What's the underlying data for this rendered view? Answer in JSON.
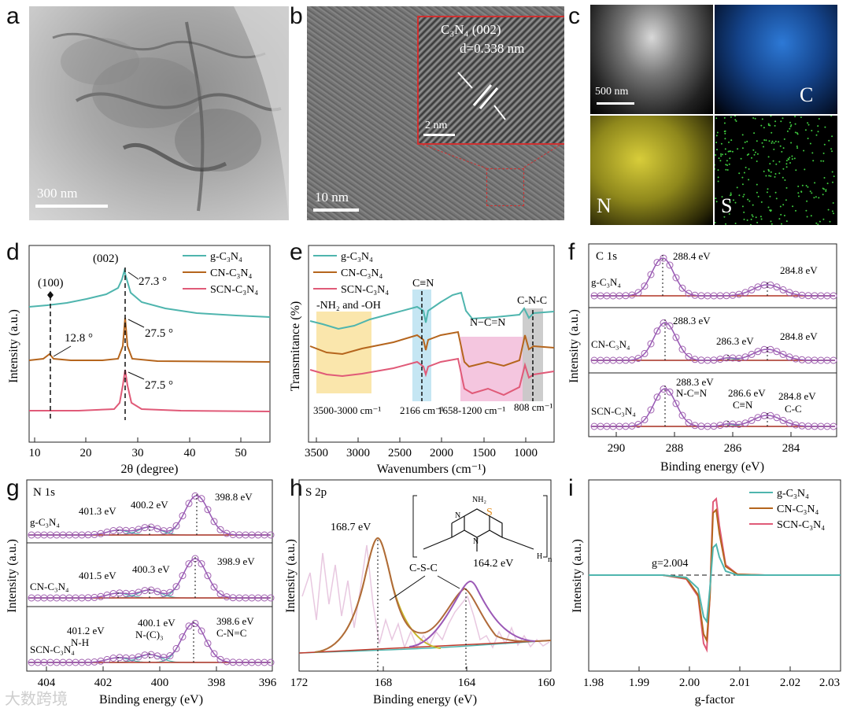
{
  "panel_labels": {
    "a": "a",
    "b": "b",
    "c": "c",
    "d": "d",
    "e": "e",
    "f": "f",
    "g": "g",
    "h": "h",
    "i": "i"
  },
  "micrographs": {
    "a": {
      "scale_bar": "300 nm"
    },
    "b": {
      "scale_bar": "10 nm",
      "inset_phase": "C₃N₄ (002)",
      "inset_d": "d=0.338 nm",
      "inset_scale": "2 nm"
    },
    "c": {
      "scale_bar": "500 nm",
      "maps": [
        "C",
        "N",
        "S"
      ]
    }
  },
  "colors": {
    "g": "#4fb5ae",
    "cn": "#b5651d",
    "scn": "#e05a78",
    "envelope": "#9b59b6",
    "bg_line": "#c0392b"
  },
  "watermark": "大数跨境",
  "chart_data": [
    {
      "panel": "d",
      "type": "line",
      "title": "",
      "xlabel": "2θ (degree)",
      "ylabel": "Intensity (a.u.)",
      "xlim": [
        8,
        55
      ],
      "xticks": [
        10,
        20,
        30,
        40,
        50
      ],
      "series": [
        {
          "name": "g-C₃N₄",
          "peaks": [
            {
              "pos": 27.3,
              "label": "27.3 °"
            }
          ]
        },
        {
          "name": "CN-C₃N₄",
          "peaks": [
            {
              "pos": 12.8,
              "label": "12.8 °"
            },
            {
              "pos": 27.5,
              "label": "27.5 °"
            }
          ]
        },
        {
          "name": "SCN-C₃N₄",
          "peaks": [
            {
              "pos": 27.5,
              "label": "27.5 °"
            }
          ]
        }
      ],
      "annotations": [
        "(100)",
        "(002)"
      ]
    },
    {
      "panel": "e",
      "type": "line",
      "xlabel": "Wavenumbers (cm⁻¹)",
      "ylabel": "Transmitance (%)",
      "xlim": [
        3600,
        600
      ],
      "xticks": [
        3500,
        3000,
        2500,
        2000,
        1500,
        1000
      ],
      "series": [
        {
          "name": "g-C₃N₄"
        },
        {
          "name": "CN-C₃N₄"
        },
        {
          "name": "SCN-C₃N₄"
        }
      ],
      "bands": [
        {
          "label": "-NH₂ and -OH",
          "range": "3500-3000 cm⁻¹"
        },
        {
          "label": "C≡N",
          "range": "2166 cm⁻¹"
        },
        {
          "label": "N−C=N",
          "range": "1658-1200 cm⁻¹"
        },
        {
          "label": "C-N-C",
          "range": "808 cm⁻¹"
        }
      ]
    },
    {
      "panel": "f",
      "type": "line",
      "title": "C 1s",
      "xlabel": "Binding energy (eV)",
      "ylabel": "Intensity (a.u.)",
      "xlim": [
        291,
        282.5
      ],
      "xticks": [
        290,
        288,
        286,
        284
      ],
      "series": [
        {
          "name": "g-C₃N₄",
          "peaks": [
            "288.4 eV",
            "284.8 eV"
          ]
        },
        {
          "name": "CN-C₃N₄",
          "peaks": [
            "288.3 eV",
            "286.3 eV",
            "284.8 eV"
          ]
        },
        {
          "name": "SCN-C₃N₄",
          "peaks": [
            "288.3 eV",
            "286.6 eV",
            "284.8 eV"
          ]
        }
      ],
      "assignments": [
        "N-C=N",
        "C≡N",
        "C-C"
      ]
    },
    {
      "panel": "g",
      "type": "line",
      "title": "N 1s",
      "xlabel": "Binding energy (eV)",
      "ylabel": "Intensity (a.u.)",
      "xlim": [
        404.5,
        396
      ],
      "xticks": [
        404,
        402,
        400,
        398,
        396
      ],
      "series": [
        {
          "name": "g-C₃N₄",
          "peaks": [
            "401.3 eV",
            "400.2 eV",
            "398.8 eV"
          ]
        },
        {
          "name": "CN-C₃N₄",
          "peaks": [
            "401.5 eV",
            "400.3 eV",
            "398.9 eV"
          ]
        },
        {
          "name": "SCN-C₃N₄",
          "peaks": [
            "401.2 eV",
            "400.1 eV",
            "398.6 eV"
          ]
        }
      ],
      "assignments": [
        "N-H",
        "N-(C)₃",
        "C-N=C"
      ]
    },
    {
      "panel": "h",
      "type": "line",
      "title": "S 2p",
      "xlabel": "Binding energy (eV)",
      "ylabel": "Intensity (a.u.)",
      "xlim": [
        172,
        160
      ],
      "xticks": [
        172,
        168,
        164,
        160
      ],
      "peaks": [
        "168.7 eV",
        "164.2 eV"
      ],
      "assignment": "C-S-C",
      "structure_atoms": {
        "nh2": "NH₂",
        "s": "S",
        "n": "N",
        "h": "H",
        "sub": "n"
      }
    },
    {
      "panel": "i",
      "type": "line",
      "xlabel": "g-factor",
      "ylabel": "Intensity (a.u.)",
      "xlim": [
        1.98,
        2.03
      ],
      "xticks": [
        "1.98",
        "1.99",
        "2.00",
        "2.01",
        "2.02",
        "2.03"
      ],
      "series": [
        {
          "name": "g-C₃N₄"
        },
        {
          "name": "CN-C₃N₄"
        },
        {
          "name": "SCN-C₃N₄"
        }
      ],
      "annotation": "g=2.004"
    }
  ]
}
